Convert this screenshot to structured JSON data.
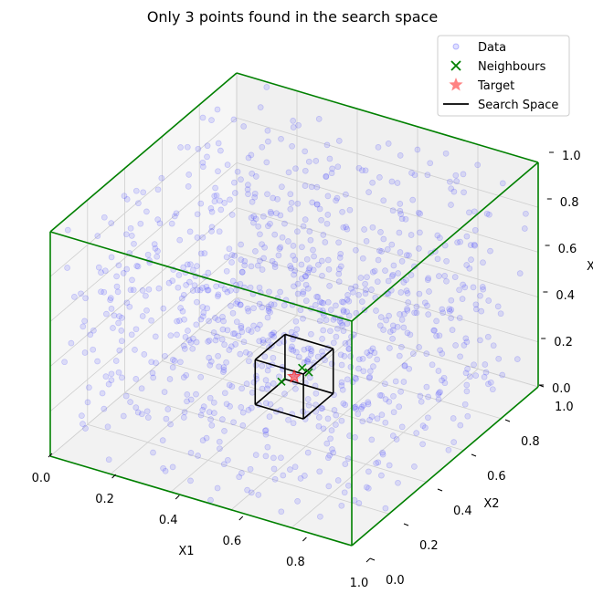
{
  "chart_data": {
    "type": "scatter",
    "projection": "3d",
    "title": "Only 3 points found in the search space",
    "xlabel": "X1",
    "ylabel": "X2",
    "zlabel": "X",
    "xlim": [
      0,
      1
    ],
    "ylim": [
      0,
      1
    ],
    "zlim": [
      0,
      1
    ],
    "x_ticks": [
      "0.0",
      "0.2",
      "0.4",
      "0.6",
      "0.8",
      "1.0"
    ],
    "y_ticks": [
      "0.0",
      "0.2",
      "0.4",
      "0.6",
      "0.8",
      "1.0"
    ],
    "z_ticks": [
      "0.0",
      "0.2",
      "0.4",
      "0.6",
      "0.8",
      "1.0"
    ],
    "grid": true,
    "legend_position": "top-right",
    "legend": [
      {
        "label": "Data",
        "marker": "circle",
        "color": "#0000ff"
      },
      {
        "label": "Neighbours",
        "marker": "x",
        "color": "#008000"
      },
      {
        "label": "Target",
        "marker": "star",
        "color": "#ff0000"
      },
      {
        "label": "Search Space",
        "marker": "line",
        "color": "#000000"
      }
    ],
    "data_series": {
      "name": "Data",
      "count": 1000,
      "distribution": "uniform random in unit cube",
      "color": "#0000ff"
    },
    "target": {
      "name": "Target",
      "x": 0.5,
      "y": 0.5,
      "z": 0.2
    },
    "neighbours": {
      "name": "Neighbours",
      "points": [
        [
          0.49,
          0.52,
          0.24
        ],
        [
          0.52,
          0.47,
          0.18
        ],
        [
          0.47,
          0.53,
          0.21
        ]
      ]
    },
    "search_space": {
      "name": "Search Space",
      "x": [
        0.42,
        0.58
      ],
      "y": [
        0.42,
        0.58
      ],
      "z": [
        0.1,
        0.3
      ]
    },
    "bounding_box_color": "#008000"
  }
}
